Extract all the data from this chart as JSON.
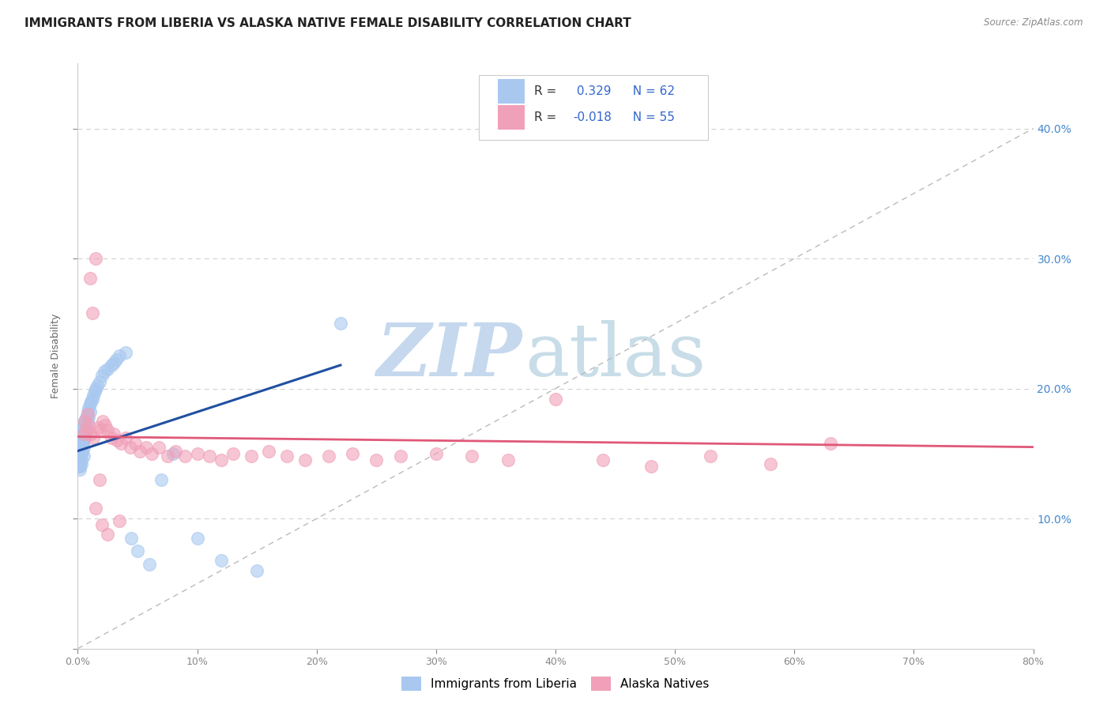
{
  "title": "IMMIGRANTS FROM LIBERIA VS ALASKA NATIVE FEMALE DISABILITY CORRELATION CHART",
  "source": "Source: ZipAtlas.com",
  "ylabel": "Female Disability",
  "legend_blue_label": "Immigrants from Liberia",
  "legend_pink_label": "Alaska Natives",
  "r_blue": 0.329,
  "n_blue": 62,
  "r_pink": -0.018,
  "n_pink": 55,
  "xlim": [
    0.0,
    0.8
  ],
  "ylim": [
    0.0,
    0.45
  ],
  "xtick_vals": [
    0.0,
    0.1,
    0.2,
    0.3,
    0.4,
    0.5,
    0.6,
    0.7,
    0.8
  ],
  "ytick_right_vals": [
    0.1,
    0.2,
    0.3,
    0.4
  ],
  "blue_color": "#a8c8f0",
  "blue_line_color": "#2050a0",
  "pink_color": "#f0a0b8",
  "pink_line_color": "#e05878",
  "background_color": "#ffffff",
  "grid_color": "#cccccc",
  "blue_dots_x": [
    0.001,
    0.001,
    0.001,
    0.001,
    0.001,
    0.002,
    0.002,
    0.002,
    0.002,
    0.002,
    0.002,
    0.003,
    0.003,
    0.003,
    0.003,
    0.003,
    0.003,
    0.004,
    0.004,
    0.004,
    0.004,
    0.005,
    0.005,
    0.005,
    0.005,
    0.005,
    0.006,
    0.006,
    0.006,
    0.007,
    0.007,
    0.007,
    0.008,
    0.008,
    0.009,
    0.009,
    0.01,
    0.01,
    0.011,
    0.012,
    0.013,
    0.014,
    0.015,
    0.016,
    0.018,
    0.02,
    0.022,
    0.025,
    0.028,
    0.03,
    0.032,
    0.035,
    0.04,
    0.045,
    0.05,
    0.06,
    0.07,
    0.08,
    0.1,
    0.12,
    0.15,
    0.22
  ],
  "blue_dots_y": [
    0.155,
    0.16,
    0.148,
    0.145,
    0.14,
    0.162,
    0.158,
    0.15,
    0.145,
    0.14,
    0.138,
    0.165,
    0.16,
    0.155,
    0.15,
    0.145,
    0.142,
    0.168,
    0.162,
    0.158,
    0.152,
    0.172,
    0.165,
    0.16,
    0.155,
    0.148,
    0.175,
    0.168,
    0.162,
    0.178,
    0.17,
    0.165,
    0.182,
    0.175,
    0.185,
    0.178,
    0.188,
    0.182,
    0.19,
    0.192,
    0.195,
    0.198,
    0.2,
    0.202,
    0.205,
    0.21,
    0.213,
    0.215,
    0.218,
    0.22,
    0.222,
    0.225,
    0.228,
    0.085,
    0.075,
    0.065,
    0.13,
    0.15,
    0.085,
    0.068,
    0.06,
    0.25
  ],
  "pink_dots_x": [
    0.005,
    0.006,
    0.007,
    0.008,
    0.009,
    0.01,
    0.011,
    0.012,
    0.013,
    0.015,
    0.017,
    0.019,
    0.021,
    0.023,
    0.025,
    0.028,
    0.03,
    0.033,
    0.036,
    0.04,
    0.044,
    0.048,
    0.052,
    0.057,
    0.062,
    0.068,
    0.075,
    0.082,
    0.09,
    0.1,
    0.11,
    0.12,
    0.13,
    0.145,
    0.16,
    0.175,
    0.19,
    0.21,
    0.23,
    0.25,
    0.27,
    0.3,
    0.33,
    0.36,
    0.4,
    0.44,
    0.48,
    0.53,
    0.58,
    0.63,
    0.015,
    0.02,
    0.018,
    0.025,
    0.035
  ],
  "pink_dots_y": [
    0.165,
    0.175,
    0.168,
    0.18,
    0.172,
    0.285,
    0.165,
    0.258,
    0.162,
    0.3,
    0.17,
    0.168,
    0.175,
    0.172,
    0.168,
    0.162,
    0.165,
    0.16,
    0.158,
    0.162,
    0.155,
    0.158,
    0.152,
    0.155,
    0.15,
    0.155,
    0.148,
    0.152,
    0.148,
    0.15,
    0.148,
    0.145,
    0.15,
    0.148,
    0.152,
    0.148,
    0.145,
    0.148,
    0.15,
    0.145,
    0.148,
    0.15,
    0.148,
    0.145,
    0.192,
    0.145,
    0.14,
    0.148,
    0.142,
    0.158,
    0.108,
    0.095,
    0.13,
    0.088,
    0.098
  ],
  "title_fontsize": 11,
  "axis_label_fontsize": 9,
  "tick_fontsize": 9,
  "legend_fontsize": 11
}
